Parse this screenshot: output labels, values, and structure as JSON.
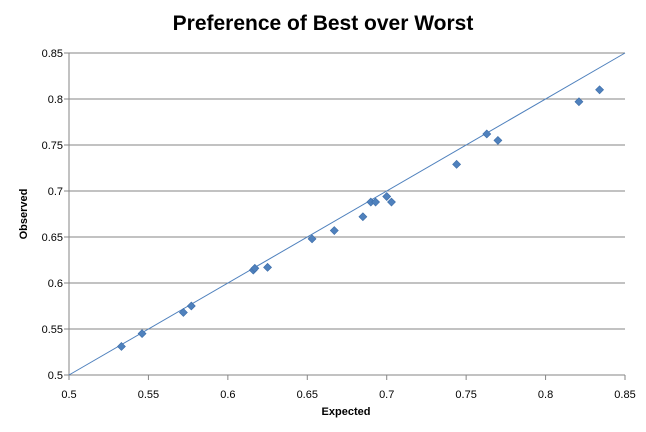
{
  "chart_data": {
    "type": "scatter",
    "title": "Preference of Best over Worst",
    "xlabel": "Expected",
    "ylabel": "Observed",
    "xlim": [
      0.5,
      0.85
    ],
    "ylim": [
      0.5,
      0.85
    ],
    "x_ticks": [
      "0.5",
      "0.55",
      "0.6",
      "0.65",
      "0.7",
      "0.75",
      "0.8",
      "0.85"
    ],
    "y_ticks": [
      "0.5",
      "0.55",
      "0.6",
      "0.65",
      "0.7",
      "0.75",
      "0.8",
      "0.85"
    ],
    "grid": "horizontal",
    "legend": "none",
    "reference_line": {
      "from": [
        0.5,
        0.5
      ],
      "to": [
        0.85,
        0.85
      ]
    },
    "marker_color": "#4F81BD",
    "line_color": "#4F81BD",
    "series": [
      {
        "points": [
          {
            "x": 0.533,
            "y": 0.531
          },
          {
            "x": 0.546,
            "y": 0.545
          },
          {
            "x": 0.572,
            "y": 0.568
          },
          {
            "x": 0.577,
            "y": 0.575
          },
          {
            "x": 0.616,
            "y": 0.614
          },
          {
            "x": 0.617,
            "y": 0.616
          },
          {
            "x": 0.625,
            "y": 0.617
          },
          {
            "x": 0.653,
            "y": 0.648
          },
          {
            "x": 0.667,
            "y": 0.657
          },
          {
            "x": 0.685,
            "y": 0.672
          },
          {
            "x": 0.69,
            "y": 0.688
          },
          {
            "x": 0.693,
            "y": 0.688
          },
          {
            "x": 0.7,
            "y": 0.694
          },
          {
            "x": 0.703,
            "y": 0.688
          },
          {
            "x": 0.744,
            "y": 0.729
          },
          {
            "x": 0.763,
            "y": 0.762
          },
          {
            "x": 0.77,
            "y": 0.755
          },
          {
            "x": 0.821,
            "y": 0.797
          },
          {
            "x": 0.834,
            "y": 0.81
          }
        ]
      }
    ]
  }
}
